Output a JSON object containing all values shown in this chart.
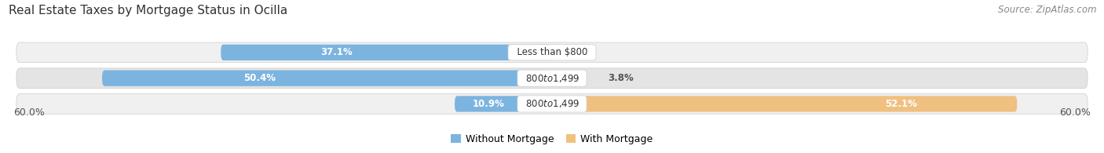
{
  "title": "Real Estate Taxes by Mortgage Status in Ocilla",
  "source": "Source: ZipAtlas.com",
  "rows": [
    {
      "label": "Less than $800",
      "without_mortgage": 37.1,
      "with_mortgage": 0.0
    },
    {
      "label": "$800 to $1,499",
      "without_mortgage": 50.4,
      "with_mortgage": 3.8
    },
    {
      "label": "$800 to $1,499",
      "without_mortgage": 10.9,
      "with_mortgage": 52.1
    }
  ],
  "max_val": 60.0,
  "color_without": "#7cb4e0",
  "color_with": "#f0c080",
  "color_without_light": "#b8d4ee",
  "color_with_light": "#f5d9a8",
  "row_bg_odd": "#f0f0f0",
  "row_bg_even": "#e4e4e4",
  "title_fontsize": 11,
  "source_fontsize": 8.5,
  "label_fontsize": 8.5,
  "value_fontsize": 8.5,
  "tick_fontsize": 9,
  "legend_fontsize": 9,
  "axis_label_left": "60.0%",
  "axis_label_right": "60.0%"
}
